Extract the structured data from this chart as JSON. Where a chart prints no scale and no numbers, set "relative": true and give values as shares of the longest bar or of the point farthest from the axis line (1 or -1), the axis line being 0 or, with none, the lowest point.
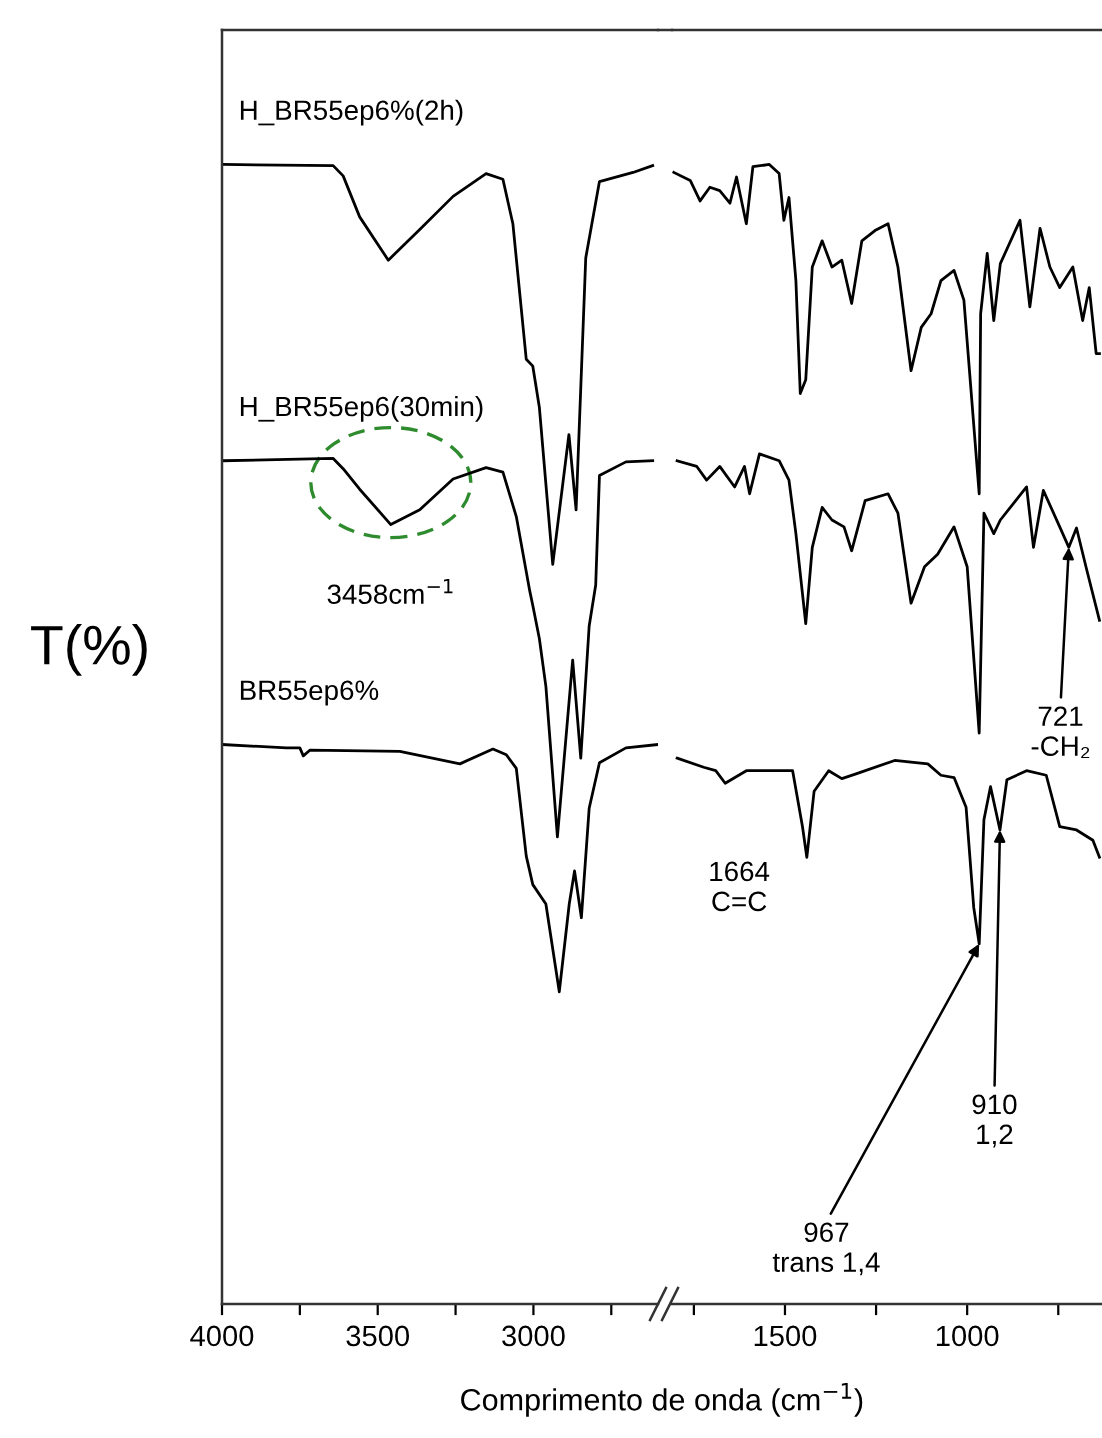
{
  "chart_data": [
    {
      "type": "line",
      "relative": true,
      "tick_labels": "x",
      "xlabel": "Comprimento de onda (cm$^{−1}$)",
      "ylabel": "T(%)",
      "xlim": [
        4000,
        2600
      ],
      "xticks": [
        4000,
        {
          "value": 3750,
          "label": null
        },
        3500,
        {
          "value": 3250,
          "label": null
        },
        3000,
        {
          "value": 2750,
          "label": null
        }
      ],
      "annotations": [
        {
          "text": "3458cm$^{−1}$",
          "x": 3458,
          "y": 0.684
        }
      ],
      "series": [
        {
          "name": "H_BR55ep6%(2h)",
          "color": "#000000",
          "x": [
            4000,
            3643,
            3611,
            3558,
            3466,
            3365,
            3258,
            3152,
            3098,
            3066,
            3023,
            3002,
            2981,
            2938,
            2886,
            2863,
            2832,
            2788,
            2680,
            2617
          ],
          "values": [
            1,
            0.999,
            0.99,
            0.954,
            0.916,
            0.943,
            0.972,
            0.992,
            0.987,
            0.948,
            0.829,
            0.823,
            0.787,
            0.649,
            0.763,
            0.697,
            0.918,
            0.985,
            0.993,
            0.999
          ]
        },
        {
          "name": "H_BR55ep6(30min)",
          "color": "#000000",
          "x": [
            4000,
            3643,
            3611,
            3558,
            3458,
            3365,
            3258,
            3152,
            3098,
            3055,
            3012,
            3002,
            2981,
            2960,
            2923,
            2874,
            2848,
            2821,
            2800,
            2788,
            2703,
            2617
          ],
          "values": [
            0.74,
            0.742,
            0.733,
            0.715,
            0.684,
            0.697,
            0.724,
            0.734,
            0.73,
            0.691,
            0.626,
            0.613,
            0.584,
            0.542,
            0.41,
            0.565,
            0.479,
            0.595,
            0.631,
            0.727,
            0.739,
            0.74
          ]
        },
        {
          "name": "BR55ep6%",
          "color": "#000000",
          "x": [
            4000,
            3793,
            3750,
            3739,
            3718,
            3429,
            3236,
            3130,
            3087,
            3055,
            3023,
            3002,
            2960,
            2917,
            2885,
            2868,
            2846,
            2821,
            2788,
            2703,
            2600
          ],
          "values": [
            0.491,
            0.488,
            0.488,
            0.481,
            0.486,
            0.485,
            0.474,
            0.487,
            0.482,
            0.47,
            0.393,
            0.368,
            0.351,
            0.274,
            0.351,
            0.38,
            0.339,
            0.435,
            0.475,
            0.488,
            0.491
          ]
        }
      ]
    },
    {
      "type": "line",
      "relative": true,
      "tick_labels": "x",
      "xlim": [
        1810,
        630
      ],
      "xticks": [
        {
          "value": 1750,
          "label": null
        },
        1500,
        {
          "value": 1250,
          "label": null
        },
        1000,
        {
          "value": 750,
          "label": null
        }
      ],
      "annotations": [
        {
          "text": "1664\nC=C",
          "x": 1664,
          "y": 0.457
        },
        {
          "text": "721\n-CH₂",
          "x": 721,
          "y": 0.664
        },
        {
          "text": "967\ntrans 1,4",
          "x": 967,
          "y": 0.316
        },
        {
          "text": "910\n1,2",
          "x": 910,
          "y": 0.416
        }
      ],
      "series": [
        {
          "color": "#000000",
          "x": [
            1805,
            1760,
            1733,
            1706,
            1679,
            1651,
            1633,
            1606,
            1588,
            1543,
            1516,
            1503,
            1489,
            1470,
            1458,
            1443,
            1425,
            1398,
            1371,
            1344,
            1317,
            1289,
            1253,
            1217,
            1190,
            1154,
            1126,
            1099,
            1072,
            1036,
            1009,
            967,
            963,
            945,
            927,
            909,
            855,
            828,
            800,
            773,
            746,
            710,
            683,
            665,
            646,
            637
          ],
          "values": [
            0.993,
            0.986,
            0.968,
            0.98,
            0.977,
            0.966,
            0.989,
            0.948,
            0.998,
            1,
            0.992,
            0.951,
            0.971,
            0.898,
            0.799,
            0.811,
            0.91,
            0.933,
            0.91,
            0.916,
            0.878,
            0.933,
            0.942,
            0.948,
            0.91,
            0.819,
            0.857,
            0.869,
            0.898,
            0.907,
            0.881,
            0.711,
            0.869,
            0.922,
            0.863,
            0.913,
            0.951,
            0.875,
            0.944,
            0.91,
            0.892,
            0.91,
            0.863,
            0.892,
            0.834,
            0.834
          ]
        },
        {
          "color": "#000000",
          "x": [
            1796,
            1742,
            1715,
            1679,
            1638,
            1611,
            1597,
            1570,
            1516,
            1489,
            1470,
            1443,
            1425,
            1398,
            1371,
            1338,
            1317,
            1280,
            1217,
            1190,
            1154,
            1117,
            1081,
            1036,
            1000,
            967,
            954,
            927,
            909,
            837,
            818,
            791,
            746,
            721,
            700,
            674,
            637
          ],
          "values": [
            0.74,
            0.735,
            0.723,
            0.735,
            0.717,
            0.735,
            0.711,
            0.746,
            0.74,
            0.723,
            0.676,
            0.597,
            0.664,
            0.699,
            0.688,
            0.682,
            0.661,
            0.705,
            0.711,
            0.694,
            0.615,
            0.647,
            0.658,
            0.682,
            0.647,
            0.501,
            0.694,
            0.676,
            0.688,
            0.717,
            0.664,
            0.714,
            0.682,
            0.664,
            0.681,
            0.647,
            0.6
          ]
        },
        {
          "color": "#000000",
          "x": [
            1796,
            1723,
            1690,
            1664,
            1606,
            1479,
            1452,
            1440,
            1420,
            1380,
            1344,
            1307,
            1199,
            1108,
            1072,
            1036,
            1003,
            982,
            967,
            954,
            936,
            910,
            891,
            837,
            783,
            746,
            700,
            655,
            637
          ],
          "values": [
            0.479,
            0.471,
            0.468,
            0.457,
            0.468,
            0.468,
            0.419,
            0.392,
            0.45,
            0.468,
            0.461,
            0.465,
            0.477,
            0.474,
            0.464,
            0.462,
            0.436,
            0.348,
            0.316,
            0.425,
            0.454,
            0.416,
            0.46,
            0.468,
            0.464,
            0.419,
            0.416,
            0.407,
            0.392
          ]
        }
      ]
    }
  ]
}
